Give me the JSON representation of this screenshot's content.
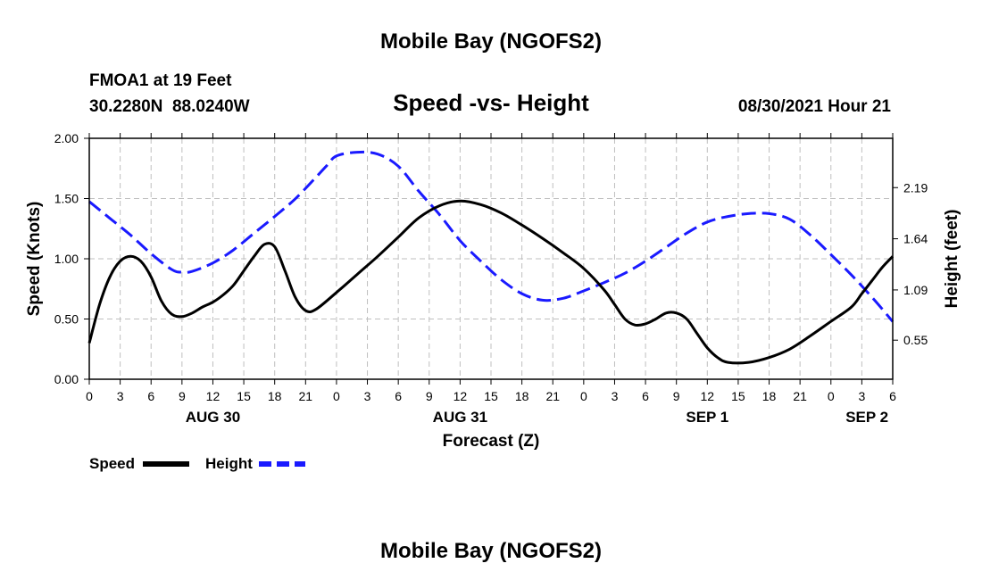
{
  "page": {
    "title_top": "Mobile Bay (NGOFS2)",
    "title_bottom": "Mobile Bay (NGOFS2)",
    "station": "FMOA1 at 19 Feet",
    "coords": "30.2280N  88.0240W",
    "subtitle": "Speed -vs- Height",
    "datetime": "08/30/2021 Hour 21"
  },
  "chart_data": {
    "type": "line",
    "xlabel": "Forecast (Z)",
    "ylabel_left": "Speed (Knots)",
    "ylabel_right": "Height (feet)",
    "x_range_hours": [
      0,
      78
    ],
    "x_ticks": [
      "0",
      "3",
      "6",
      "9",
      "12",
      "15",
      "18",
      "21",
      "0",
      "3",
      "6",
      "9",
      "12",
      "15",
      "18",
      "21",
      "0",
      "3",
      "6",
      "9",
      "12",
      "15",
      "18",
      "21",
      "0",
      "3",
      "6"
    ],
    "date_labels": [
      {
        "label": "AUG 30",
        "hour": 12
      },
      {
        "label": "AUG 31",
        "hour": 36
      },
      {
        "label": "SEP 1",
        "hour": 60
      },
      {
        "label": "SEP 2",
        "hour": 75.5
      }
    ],
    "left_axis": {
      "min": 0,
      "max": 2,
      "ticks": [
        "0.00",
        "0.50",
        "1.00",
        "1.50",
        "2.00"
      ]
    },
    "right_axis": {
      "min": 0.13,
      "max": 2.72,
      "ticks": [
        "0.55",
        "1.09",
        "1.64",
        "2.19"
      ]
    },
    "grid": true,
    "legend_position": "bottom-left",
    "series": [
      {
        "name": "Speed",
        "color": "#000000",
        "dash": false,
        "axis": "left",
        "x": [
          0,
          1,
          2,
          3,
          4,
          5,
          6,
          7,
          8,
          9,
          10,
          11,
          12,
          13,
          14,
          15,
          16,
          17,
          18,
          19,
          20,
          21,
          22,
          24,
          26,
          28,
          30,
          32,
          34,
          36,
          38,
          40,
          42,
          44,
          46,
          48,
          50,
          51,
          52,
          53,
          54,
          55,
          56,
          57,
          58,
          59,
          60,
          61,
          62,
          64,
          66,
          68,
          70,
          72,
          74,
          75,
          76,
          77,
          78
        ],
        "y": [
          0.3,
          0.62,
          0.85,
          0.98,
          1.02,
          0.98,
          0.85,
          0.65,
          0.54,
          0.52,
          0.55,
          0.6,
          0.64,
          0.7,
          0.78,
          0.9,
          1.02,
          1.12,
          1.1,
          0.9,
          0.68,
          0.57,
          0.58,
          0.72,
          0.87,
          1.02,
          1.18,
          1.34,
          1.44,
          1.48,
          1.45,
          1.38,
          1.28,
          1.17,
          1.05,
          0.92,
          0.74,
          0.62,
          0.5,
          0.45,
          0.46,
          0.5,
          0.55,
          0.55,
          0.5,
          0.38,
          0.26,
          0.18,
          0.14,
          0.14,
          0.18,
          0.25,
          0.36,
          0.48,
          0.6,
          0.71,
          0.82,
          0.93,
          1.02
        ]
      },
      {
        "name": "Height",
        "color": "#1a1aff",
        "dash": true,
        "axis": "right",
        "x": [
          0,
          2,
          4,
          6,
          8,
          9,
          10,
          12,
          14,
          16,
          18,
          20,
          22,
          23,
          24,
          26,
          28,
          30,
          32,
          34,
          36,
          38,
          40,
          42,
          44,
          46,
          48,
          50,
          52,
          54,
          56,
          58,
          60,
          62,
          64,
          66,
          68,
          70,
          72,
          74,
          76,
          78
        ],
        "y": [
          2.04,
          1.86,
          1.68,
          1.48,
          1.31,
          1.28,
          1.29,
          1.38,
          1.52,
          1.7,
          1.88,
          2.07,
          2.3,
          2.42,
          2.53,
          2.57,
          2.55,
          2.42,
          2.15,
          1.9,
          1.62,
          1.4,
          1.2,
          1.05,
          0.98,
          1.0,
          1.08,
          1.17,
          1.27,
          1.4,
          1.55,
          1.7,
          1.82,
          1.88,
          1.91,
          1.91,
          1.85,
          1.68,
          1.47,
          1.25,
          1.01,
          0.75
        ]
      }
    ]
  }
}
